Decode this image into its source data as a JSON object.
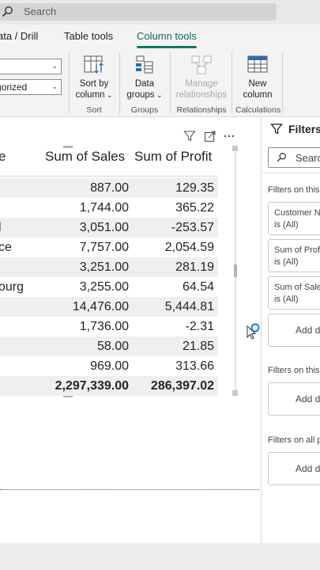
{
  "search": {
    "placeholder": "Search"
  },
  "tabs": [
    {
      "label": "ata / Drill",
      "active": false
    },
    {
      "label": "Table tools",
      "active": false
    },
    {
      "label": "Column tools",
      "active": true
    }
  ],
  "ribbon": {
    "dropdown_top_value": "",
    "dropdown_bottom_value": "gorized",
    "sort_by_column": {
      "line1": "Sort by",
      "line2": "column"
    },
    "data_groups": {
      "line1": "Data",
      "line2": "groups"
    },
    "manage_relationships": {
      "line1": "Manage",
      "line2": "relationships"
    },
    "new_column": {
      "line1": "New",
      "line2": "column"
    },
    "groups": {
      "sort": "Sort",
      "groups": "Groups",
      "relationships": "Relationships",
      "calculations": "Calculations"
    }
  },
  "table": {
    "headers": {
      "c1": "e",
      "c2": "Sum of Sales",
      "c3": "Sum of Profit"
    },
    "rows": [
      {
        "c1": "",
        "sales": "887.00",
        "profit": "129.35"
      },
      {
        "c1": "",
        "sales": "1,744.00",
        "profit": "365.22"
      },
      {
        "c1": "l",
        "sales": "3,051.00",
        "profit": "-253.57"
      },
      {
        "c1": "ce",
        "sales": "7,757.00",
        "profit": "2,054.59"
      },
      {
        "c1": "",
        "sales": "3,251.00",
        "profit": "281.19"
      },
      {
        "c1": "ourg",
        "sales": "3,255.00",
        "profit": "64.54"
      },
      {
        "c1": "",
        "sales": "14,476.00",
        "profit": "5,444.81"
      },
      {
        "c1": "",
        "sales": "1,736.00",
        "profit": "-2.31"
      },
      {
        "c1": "",
        "sales": "58.00",
        "profit": "21.85"
      },
      {
        "c1": "",
        "sales": "969.00",
        "profit": "313.66"
      }
    ],
    "total": {
      "c1": "",
      "sales": "2,297,339.00",
      "profit": "286,397.02"
    }
  },
  "filters": {
    "title": "Filters",
    "search_placeholder": "Search",
    "on_this_visual_label": "Filters on this",
    "cards": [
      {
        "l1": "Customer Na",
        "l2": "is (All)"
      },
      {
        "l1": "Sum of Profi",
        "l2": "is (All)"
      },
      {
        "l1": "Sum of Sales",
        "l2": "is (All)"
      }
    ],
    "add_data_label": "Add da",
    "on_this_page_label": "Filters on this",
    "on_all_pages_label": "Filters on all p"
  },
  "colors": {
    "accent": "#117865",
    "banded_row": "#efefed"
  }
}
